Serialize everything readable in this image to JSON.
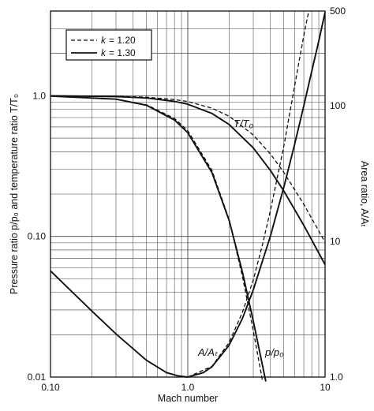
{
  "chart_data": {
    "type": "line",
    "xscale": "log",
    "yscale": "log",
    "xlim": [
      0.1,
      10
    ],
    "ylim": [
      0.01,
      4
    ],
    "y2lim": [
      1,
      500
    ],
    "x_ticks": [
      {
        "v": 0.1,
        "label": "0.10"
      },
      {
        "v": 1,
        "label": "1.0"
      },
      {
        "v": 10,
        "label": "10"
      }
    ],
    "y_ticks": [
      {
        "v": 0.01,
        "label": "0.01"
      },
      {
        "v": 0.1,
        "label": "0.10"
      },
      {
        "v": 1,
        "label": "1.0"
      }
    ],
    "y2_ticks": [
      {
        "v": 1,
        "label": "1.0"
      },
      {
        "v": 10,
        "label": "10"
      },
      {
        "v": 100,
        "label": "100"
      },
      {
        "v": 500,
        "label": "500"
      }
    ],
    "xlabel": "Mach number",
    "ylabel_left": "Pressure ratio p/p₀ and temperature ratio T/T₀",
    "ylabel_right": "Area ratio, A/Aₜ",
    "legend": [
      {
        "k_label": "k",
        "value_label": "= 1.20",
        "style": "dashed"
      },
      {
        "k_label": "k",
        "value_label": "= 1.30",
        "style": "solid"
      }
    ],
    "k_values": [
      1.2,
      1.3
    ],
    "curve_labels": {
      "temperature": "T/T₀",
      "area": "A/Aₜ",
      "pressure": "p/p₀"
    },
    "series": [
      {
        "quantity": "T/T0",
        "k": 1.2,
        "axis": "left",
        "points": [
          [
            0.1,
            1.0
          ],
          [
            0.3,
            0.991
          ],
          [
            0.5,
            0.976
          ],
          [
            0.8,
            0.94
          ],
          [
            1.0,
            0.909
          ],
          [
            1.5,
            0.816
          ],
          [
            2.0,
            0.714
          ],
          [
            3.0,
            0.526
          ],
          [
            4.0,
            0.385
          ],
          [
            5.0,
            0.286
          ],
          [
            7.0,
            0.169
          ],
          [
            10.0,
            0.091
          ]
        ]
      },
      {
        "quantity": "T/T0",
        "k": 1.3,
        "axis": "left",
        "points": [
          [
            0.1,
            0.998
          ],
          [
            0.3,
            0.987
          ],
          [
            0.5,
            0.964
          ],
          [
            0.8,
            0.912
          ],
          [
            1.0,
            0.87
          ],
          [
            1.5,
            0.748
          ],
          [
            2.0,
            0.625
          ],
          [
            3.0,
            0.426
          ],
          [
            4.0,
            0.294
          ],
          [
            5.0,
            0.211
          ],
          [
            7.0,
            0.12
          ],
          [
            10.0,
            0.063
          ]
        ]
      },
      {
        "quantity": "p/p0",
        "k": 1.2,
        "axis": "left",
        "points": [
          [
            0.1,
            1.0
          ],
          [
            0.3,
            0.946
          ],
          [
            0.5,
            0.863
          ],
          [
            0.8,
            0.69
          ],
          [
            1.0,
            0.564
          ],
          [
            1.5,
            0.295
          ],
          [
            2.0,
            0.132
          ],
          [
            2.5,
            0.052
          ],
          [
            3.0,
            0.0214
          ],
          [
            3.5,
            0.0094
          ]
        ]
      },
      {
        "quantity": "p/p0",
        "k": 1.3,
        "axis": "left",
        "points": [
          [
            0.1,
            0.994
          ],
          [
            0.3,
            0.946
          ],
          [
            0.5,
            0.856
          ],
          [
            0.8,
            0.672
          ],
          [
            1.0,
            0.546
          ],
          [
            1.5,
            0.284
          ],
          [
            2.0,
            0.13
          ],
          [
            2.5,
            0.056
          ],
          [
            3.0,
            0.025
          ],
          [
            3.7,
            0.0093
          ]
        ]
      },
      {
        "quantity": "A/At",
        "k": 1.2,
        "axis": "right",
        "points": [
          [
            1.0,
            1.0
          ],
          [
            1.5,
            1.2
          ],
          [
            2.0,
            1.8
          ],
          [
            2.5,
            3.0
          ],
          [
            3.0,
            5.2
          ],
          [
            3.5,
            9.5
          ],
          [
            4.0,
            17.0
          ],
          [
            5.0,
            50.0
          ],
          [
            6.0,
            140.0
          ],
          [
            7.0,
            330.0
          ],
          [
            7.6,
            500.0
          ]
        ]
      },
      {
        "quantity": "A/At",
        "k": 1.3,
        "axis": "right",
        "points": [
          [
            0.1,
            6.07
          ],
          [
            0.2,
            3.07
          ],
          [
            0.3,
            2.08
          ],
          [
            0.5,
            1.33
          ],
          [
            0.7,
            1.08
          ],
          [
            0.85,
            1.02
          ],
          [
            1.0,
            1.0
          ],
          [
            1.3,
            1.08
          ],
          [
            1.5,
            1.19
          ],
          [
            2.0,
            1.72
          ],
          [
            2.5,
            2.7
          ],
          [
            3.0,
            4.4
          ],
          [
            4.0,
            11.0
          ],
          [
            5.0,
            25.0
          ],
          [
            6.0,
            52.0
          ],
          [
            7.0,
            100.0
          ],
          [
            8.0,
            180.0
          ],
          [
            9.0,
            300.0
          ],
          [
            10.0,
            490.0
          ]
        ]
      }
    ]
  }
}
